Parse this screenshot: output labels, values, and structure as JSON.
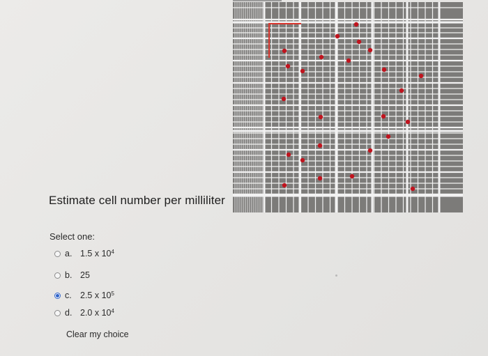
{
  "question": {
    "text": "Estimate cell number per milliliter"
  },
  "prompt": {
    "select_one": "Select one:"
  },
  "options": [
    {
      "letter": "a.",
      "base": "1.5 x 10",
      "exp": "4",
      "selected": false
    },
    {
      "letter": "b.",
      "base": "25",
      "exp": "",
      "selected": false
    },
    {
      "letter": "c.",
      "base": "2.5 x 10",
      "exp": "5",
      "selected": true
    },
    {
      "letter": "d.",
      "base": "2.0 x 10",
      "exp": "4",
      "selected": false
    }
  ],
  "actions": {
    "clear_label": "Clear my choice"
  },
  "colors": {
    "grid_background": "#7c7b79",
    "grid_lines": "#f2f2f2",
    "cell_dot": "#c0141e",
    "marker": "#d9362e",
    "radio_selected": "#2f63c9"
  }
}
